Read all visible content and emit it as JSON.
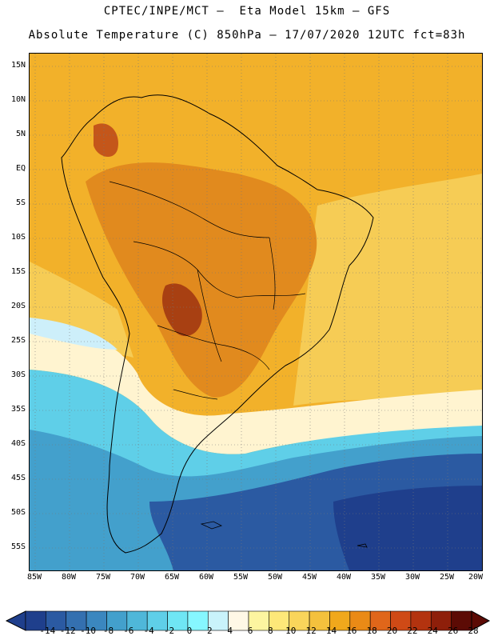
{
  "header": {
    "line1": "CPTEC/INPE/MCT –  Eta Model 15km – GFS",
    "line2": "Absolute Temperature (C) 850hPa – 17/07/2020 12UTC fct=83h"
  },
  "axes": {
    "lat_labels": [
      "15N",
      "10N",
      "5N",
      "EQ",
      "5S",
      "10S",
      "15S",
      "20S",
      "25S",
      "30S",
      "35S",
      "40S",
      "45S",
      "50S",
      "55S"
    ],
    "lon_labels": [
      "85W",
      "80W",
      "75W",
      "70W",
      "65W",
      "60W",
      "55W",
      "50W",
      "45W",
      "40W",
      "35W",
      "30W",
      "25W",
      "20W"
    ]
  },
  "colorbar": {
    "labels": [
      "-14",
      "-12",
      "-10",
      "-8",
      "-6",
      "-4",
      "-2",
      "0",
      "2",
      "4",
      "6",
      "8",
      "10",
      "12",
      "14",
      "16",
      "18",
      "20",
      "22",
      "24",
      "26",
      "28"
    ],
    "colors": [
      "#1f3f8c",
      "#2b5aa2",
      "#3470b0",
      "#3b87bf",
      "#43a0cc",
      "#4fb7d9",
      "#5fcfe8",
      "#6fe6f4",
      "#86f7ff",
      "#c9f3fb",
      "#fff8e6",
      "#fdf5a0",
      "#fde879",
      "#f9d55b",
      "#f4c13d",
      "#f0a81c",
      "#ea8a16",
      "#e0661a",
      "#cf4a16",
      "#b3330f",
      "#8e1f0a",
      "#5c0b05"
    ]
  },
  "map_colors": {
    "ocean_cold": "#1f4e9c",
    "ocean_mid": "#43a0cc",
    "ocean_cyan": "#5fcfe8",
    "pale": "#cdeffa",
    "cream": "#fff8e6",
    "yellow": "#fde879",
    "warm": "#f0a81c",
    "hot": "#d4681a",
    "hottest": "#9a3a12",
    "coast": "#000000"
  }
}
